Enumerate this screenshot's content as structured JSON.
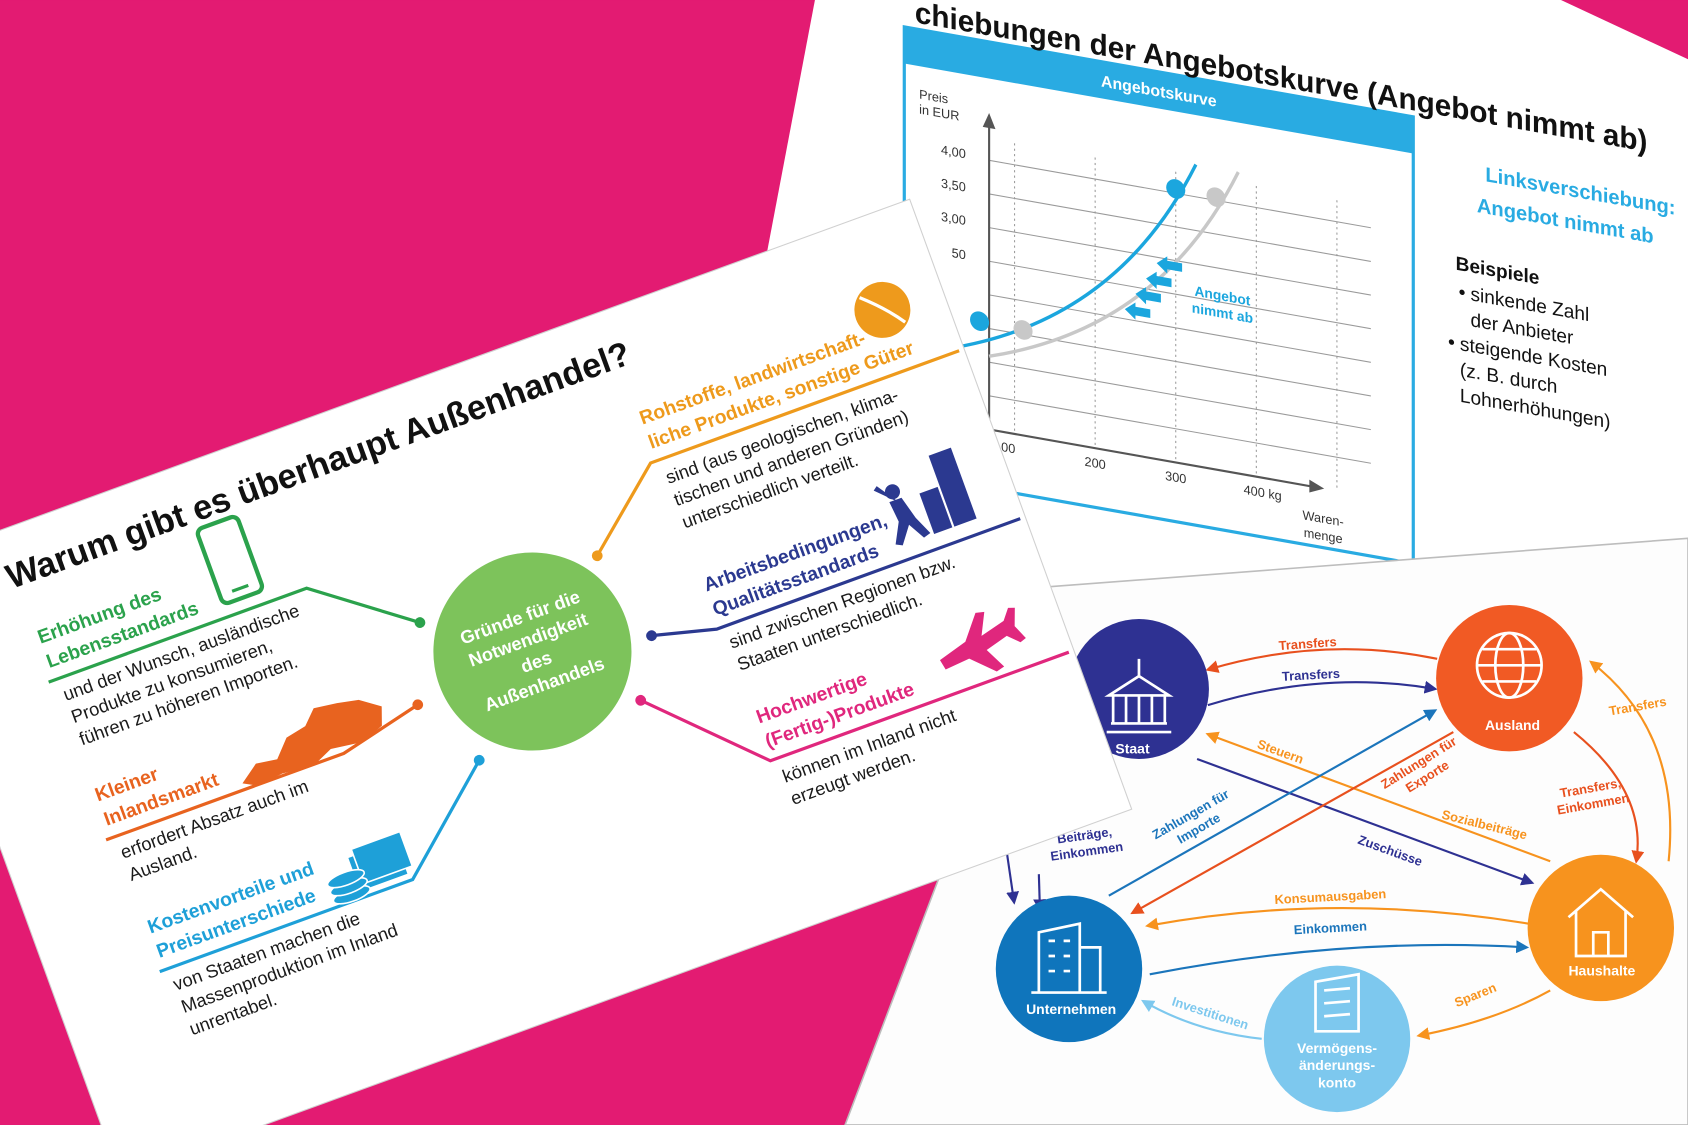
{
  "trade_slide": {
    "title": "Warum gibt es überhaupt Außenhandel?",
    "center": [
      "Gründe für die",
      "Notwendigkeit",
      "des",
      "Außenhandels"
    ],
    "reasons": [
      {
        "heading": [
          "Erhöhung des",
          "Lebensstandards"
        ],
        "text": [
          "und der Wunsch, ausländische",
          "Produkte zu konsumieren,",
          "führen zu höheren Importen."
        ]
      },
      {
        "heading": [
          "Kleiner",
          "Inlandsmarkt"
        ],
        "text": [
          "erfordert Absatz auch im",
          "Ausland."
        ]
      },
      {
        "heading": [
          "Kostenvorteile und",
          "Preisunterschiede"
        ],
        "text": [
          "von Staaten machen die",
          "Massenproduktion im Inland",
          "unrentabel."
        ]
      },
      {
        "heading": [
          "Rohstoffe, landwirtschaft-",
          "liche Produkte, sonstige Güter"
        ],
        "text": [
          "sind (aus geologischen, klima-",
          "tischen und anderen Gründen)",
          "unterschiedlich verteilt."
        ]
      },
      {
        "heading": [
          "Arbeitsbedingungen,",
          "Qualitätsstandards"
        ],
        "text": [
          "sind zwischen Regionen bzw.",
          "Staaten unterschiedlich."
        ]
      },
      {
        "heading": [
          "Hochwertige",
          "(Fertig-)Produkte"
        ],
        "text": [
          "können im Inland nicht",
          "erzeugt werden."
        ]
      }
    ]
  },
  "supply_slide": {
    "title": "chiebungen der Angebotskurve (Angebot nimmt ab)",
    "chart_title": "Angebotskurve",
    "y_label": [
      "Preis",
      "in EUR"
    ],
    "y_ticks": [
      "4,00",
      "3,50",
      "3,00",
      "50"
    ],
    "x_ticks": [
      "00",
      "200",
      "300",
      "400 kg"
    ],
    "x_label": [
      "Waren-",
      "menge"
    ],
    "annotation": [
      "Angebot",
      "nimmt ab"
    ],
    "heading": [
      "Linksverschiebung:",
      "Angebot nimmt ab"
    ],
    "examples_title": "Beispiele",
    "examples": [
      [
        "sinkende Zahl",
        "der Anbieter"
      ],
      [
        "steigende Kosten",
        "(z. B. durch",
        "Lohnerhöhungen)"
      ]
    ]
  },
  "flow_slide": {
    "nodes": [
      {
        "label": [
          "Staat"
        ]
      },
      {
        "label": [
          "Ausland"
        ]
      },
      {
        "label": [
          "Haushalte"
        ]
      },
      {
        "label": [
          "Unternehmen"
        ]
      },
      {
        "label": [
          "Vermögens-",
          "änderungs-",
          "konto"
        ]
      }
    ],
    "flows": [
      {
        "label": [
          "Transfers"
        ]
      },
      {
        "label": [
          "Transfers"
        ]
      },
      {
        "label": [
          "Transfers"
        ]
      },
      {
        "label": [
          "Transfers,",
          "Einkommen"
        ]
      },
      {
        "label": [
          "Steuern"
        ]
      },
      {
        "label": [
          "Zahlungen für",
          "Exporte"
        ]
      },
      {
        "label": [
          "Sozialbeiträge"
        ]
      },
      {
        "label": [
          "Zuschüsse"
        ]
      },
      {
        "label": [
          "Zahlungen für",
          "Importe"
        ]
      },
      {
        "label": [
          "Beiträge,",
          "Einkommen"
        ]
      },
      {
        "label": [
          "Konsumausgaben"
        ]
      },
      {
        "label": [
          "Einkommen"
        ]
      },
      {
        "label": [
          "Sparen"
        ]
      },
      {
        "label": [
          "Investitionen"
        ]
      }
    ]
  }
}
